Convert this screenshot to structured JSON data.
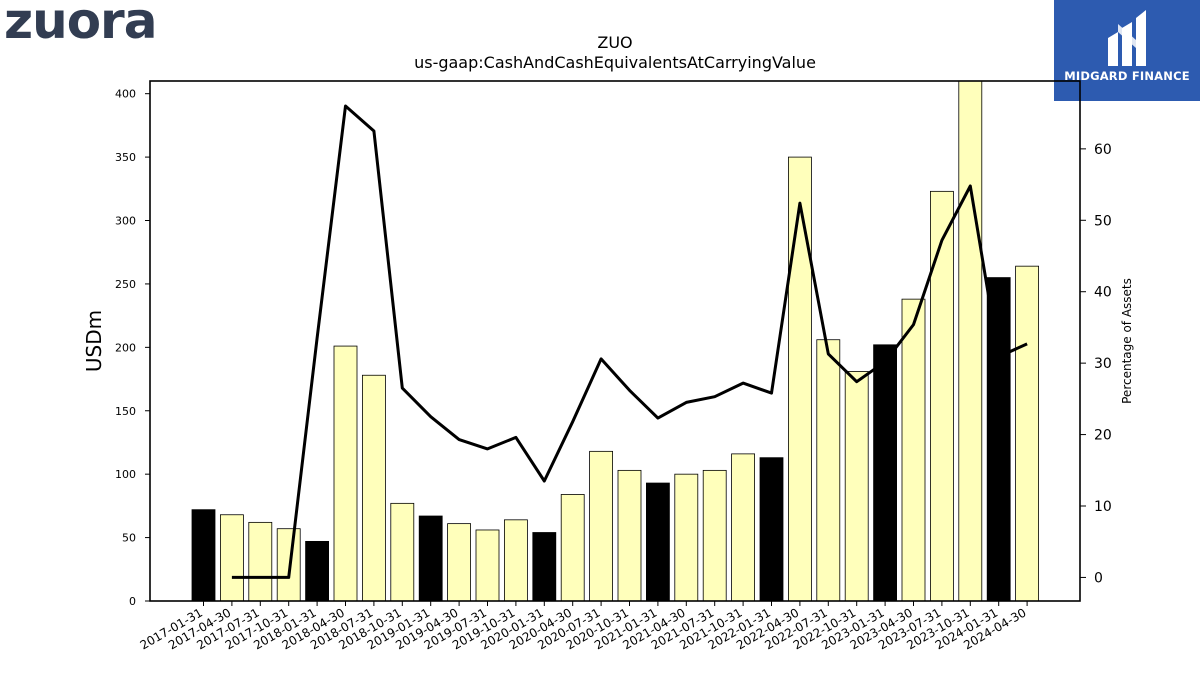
{
  "logos": {
    "left_brand": "zuora",
    "right_brand": "MIDGARD FINANCE"
  },
  "colors": {
    "bar_default": "#ffffbb",
    "bar_highlight": "#000000",
    "line": "#000000",
    "brand_left": "#323d52",
    "brand_right_bg": "#2d5bb0"
  },
  "chart_data": {
    "type": "bar",
    "title": "ZUO",
    "subtitle": "us-gaap:CashAndCashEquivalentsAtCarryingValue",
    "ylabel": "USDm",
    "y2label": "Percentage of Assets",
    "ylim": [
      0,
      410
    ],
    "y2lim": [
      -3.3,
      69.5
    ],
    "yticks": [
      0,
      50,
      100,
      150,
      200,
      250,
      300,
      350,
      400
    ],
    "y2ticks": [
      0,
      10,
      20,
      30,
      40,
      50,
      60
    ],
    "categories": [
      "2017-01-31",
      "2017-04-30",
      "2017-07-31",
      "2017-10-31",
      "2018-01-31",
      "2018-04-30",
      "2018-07-31",
      "2018-10-31",
      "2019-01-31",
      "2019-04-30",
      "2019-07-31",
      "2019-10-31",
      "2020-01-31",
      "2020-04-30",
      "2020-07-31",
      "2020-10-31",
      "2021-01-31",
      "2021-04-30",
      "2021-07-31",
      "2021-10-31",
      "2022-01-31",
      "2022-04-30",
      "2022-07-31",
      "2022-10-31",
      "2023-01-31",
      "2023-04-30",
      "2023-07-31",
      "2023-10-31",
      "2024-01-31",
      "2024-04-30"
    ],
    "series": [
      {
        "type": "bar",
        "values": [
          72,
          68,
          62,
          57,
          47,
          201,
          178,
          77,
          67,
          61,
          56,
          64,
          54,
          84,
          118,
          103,
          93,
          100,
          103,
          116,
          113,
          350,
          206,
          181,
          202,
          238,
          323,
          415,
          255,
          264
        ],
        "highlight": [
          true,
          false,
          false,
          false,
          true,
          false,
          false,
          false,
          true,
          false,
          false,
          false,
          true,
          false,
          false,
          false,
          true,
          false,
          false,
          false,
          true,
          false,
          false,
          false,
          true,
          false,
          false,
          false,
          true,
          false
        ]
      },
      {
        "type": "line",
        "axis": "right",
        "values": [
          null,
          0,
          0,
          0,
          33.5,
          66,
          62.5,
          26.5,
          22.5,
          19.3,
          18,
          19.6,
          13.5,
          21.8,
          30.6,
          26.2,
          22.3,
          24.5,
          25.3,
          27.2,
          25.8,
          52.4,
          31.3,
          27.4,
          30.2,
          35.4,
          47.2,
          54.8,
          30.9,
          32.7
        ]
      }
    ],
    "grid": false,
    "legend": "none"
  }
}
